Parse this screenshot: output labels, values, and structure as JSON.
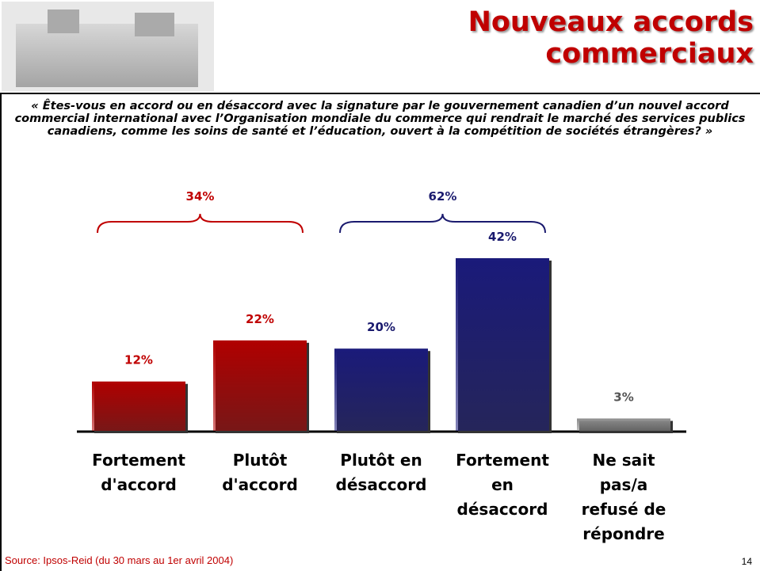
{
  "header": {
    "title": "Nouveaux accords commerciaux"
  },
  "question": "« Êtes-vous en accord ou en désaccord avec la signature par le gouvernement canadien d’un nouvel accord commercial international avec l’Organisation mondiale du commerce qui rendrait le marché des services publics canadiens, comme les soins de santé et l’éducation, ouvert à la compétition de sociétés étrangères? »",
  "chart_data": {
    "type": "bar",
    "categories": [
      "Fortement d'accord",
      "Plutôt d'accord",
      "Plutôt en désaccord",
      "Fortement en désaccord",
      "Ne sait pas/a refusé de répondre"
    ],
    "values": [
      12,
      22,
      20,
      42,
      3
    ],
    "value_labels": [
      "12%",
      "22%",
      "20%",
      "42%",
      "3%"
    ],
    "colors": [
      "#b00000",
      "#b00000",
      "#1a1a7a",
      "#1a1a7a",
      "#8c8c8c"
    ],
    "label_colors": [
      "#c00000",
      "#c00000",
      "#1a1a6e",
      "#1a1a6e",
      "#555555"
    ],
    "groups": [
      {
        "value": 34,
        "label": "34%",
        "color": "#c00000",
        "from": 0,
        "to": 1
      },
      {
        "value": 62,
        "label": "62%",
        "color": "#1a1a6e",
        "from": 2,
        "to": 3
      }
    ]
  },
  "footer": {
    "source": "Source: Ipsos-Reid (du 30 mars au 1er avril 2004)",
    "page": "14"
  }
}
